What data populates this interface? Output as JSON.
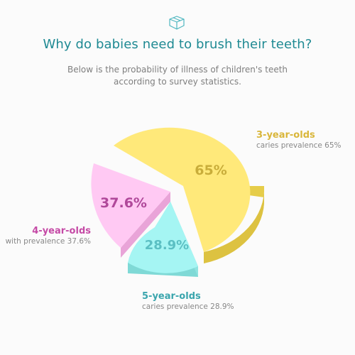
{
  "logo_icon": "box-outline-icon",
  "title": "Why do babies need to brush their teeth?",
  "subtitle_line1": "Below is the probability of illness of children's teeth",
  "subtitle_line2": "according to survey statistics.",
  "colors": {
    "title": "#1f8a93",
    "three_year": "#ffe97a",
    "three_year_label": "#d9b63a",
    "four_year": "#ffc9f3",
    "four_year_label": "#c54aa6",
    "five_year": "#a5f5f3",
    "five_year_label": "#3aa5ad"
  },
  "chart_data": {
    "type": "pie",
    "slices": [
      {
        "key": "three",
        "category": "3-year-olds",
        "description": "caries prevalence 65%",
        "value": 65,
        "value_label": "65%"
      },
      {
        "key": "four",
        "category": "4-year-olds",
        "description": "with prevalence 37.6%",
        "value": 37.6,
        "value_label": "37.6%"
      },
      {
        "key": "five",
        "category": "5-year-olds",
        "description": "caries prevalence 28.9%",
        "value": 28.9,
        "value_label": "28.9%"
      }
    ]
  }
}
